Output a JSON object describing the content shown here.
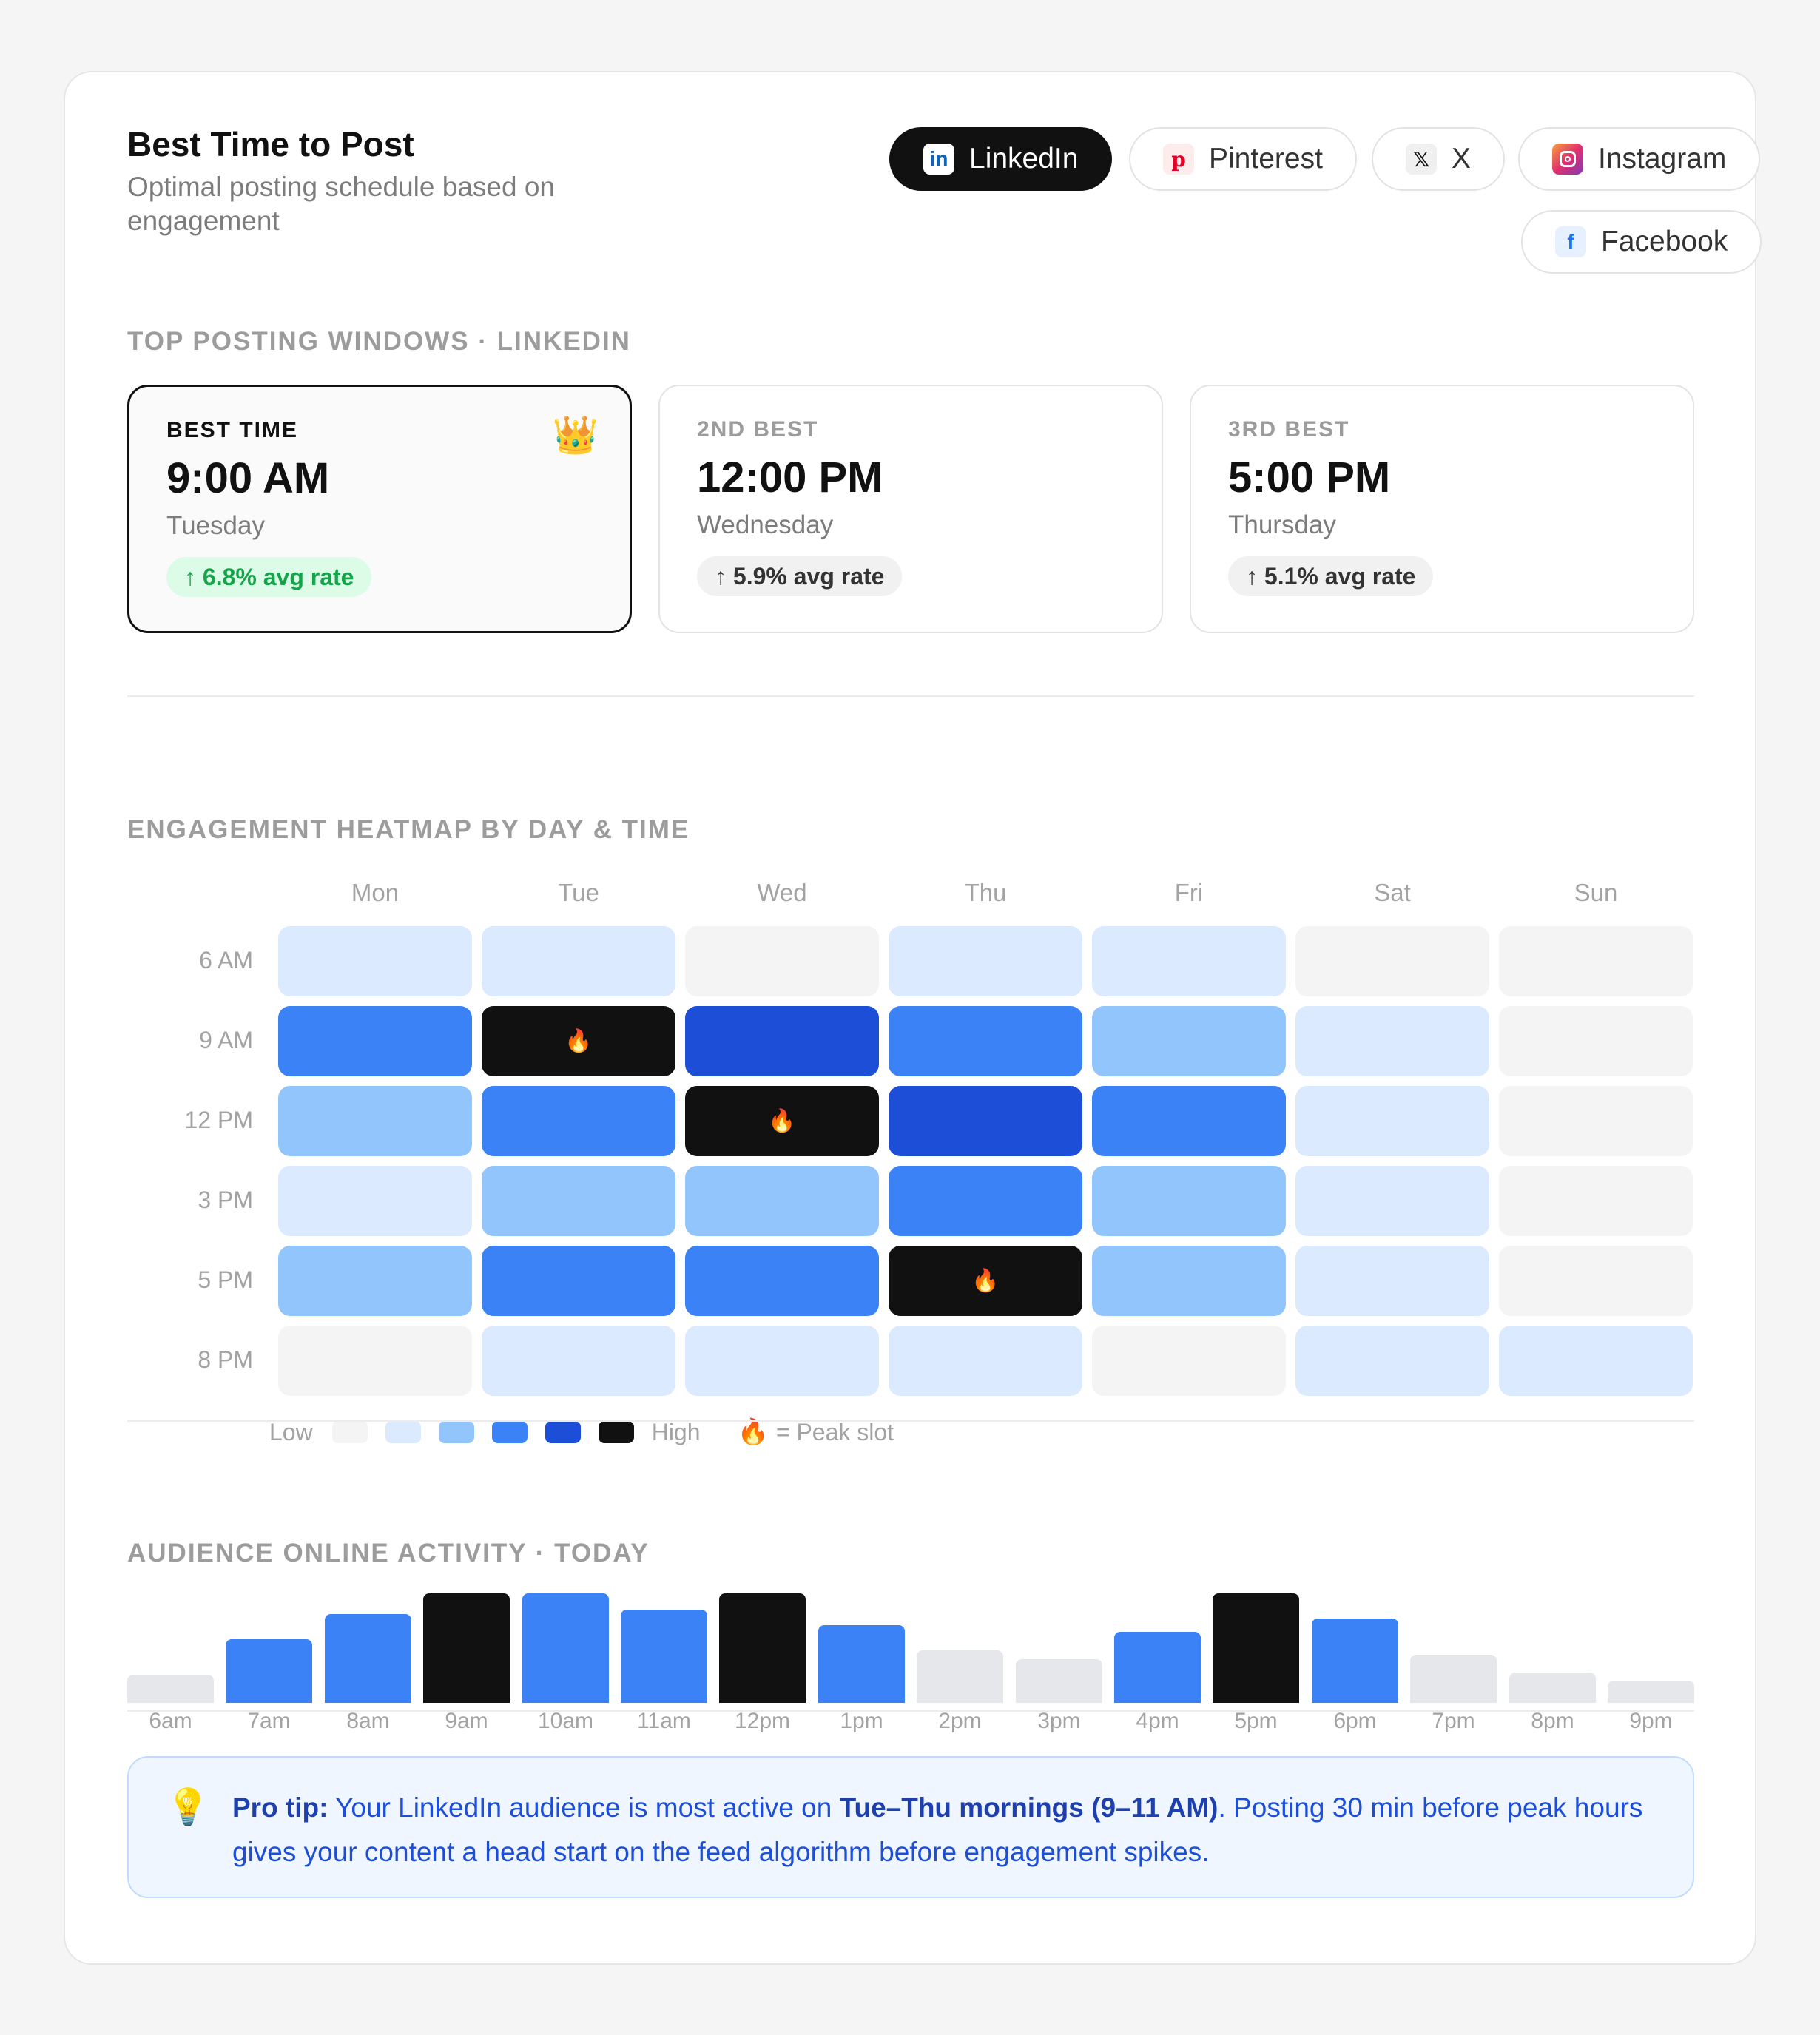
{
  "header": {
    "title": "Best Time to Post",
    "subtitle": "Optimal posting schedule based on engagement"
  },
  "platforms": [
    {
      "label": "LinkedIn",
      "icon": "linkedin-icon",
      "active": true
    },
    {
      "label": "Pinterest",
      "icon": "pinterest-icon",
      "active": false
    },
    {
      "label": "X",
      "icon": "x-icon",
      "active": false
    },
    {
      "label": "Instagram",
      "icon": "instagram-icon",
      "active": false
    },
    {
      "label": "Facebook",
      "icon": "facebook-icon",
      "active": false
    }
  ],
  "windows": {
    "label": "TOP POSTING WINDOWS · LINKEDIN",
    "items": [
      {
        "rank": "BEST TIME",
        "time": "9:00 AM",
        "day": "Tuesday",
        "rate": "↑ 6.8% avg rate",
        "icon": "crown-icon"
      },
      {
        "rank": "2ND BEST",
        "time": "12:00 PM",
        "day": "Wednesday",
        "rate": "↑ 5.9% avg rate"
      },
      {
        "rank": "3RD BEST",
        "time": "5:00 PM",
        "day": "Thursday",
        "rate": "↑ 5.1% avg rate"
      }
    ]
  },
  "heatmap": {
    "label": "ENGAGEMENT HEATMAP BY DAY & TIME",
    "days": [
      "Mon",
      "Tue",
      "Wed",
      "Thu",
      "Fri",
      "Sat",
      "Sun"
    ],
    "times": [
      "6 AM",
      "9 AM",
      "12 PM",
      "3 PM",
      "5 PM",
      "8 PM"
    ],
    "levels": [
      [
        1,
        1,
        0,
        1,
        1,
        0,
        0
      ],
      [
        3,
        5,
        4,
        3,
        2,
        1,
        0
      ],
      [
        2,
        3,
        5,
        4,
        3,
        1,
        0
      ],
      [
        1,
        2,
        2,
        3,
        2,
        1,
        0
      ],
      [
        2,
        3,
        3,
        5,
        2,
        1,
        0
      ],
      [
        0,
        1,
        1,
        1,
        0,
        1,
        1
      ]
    ],
    "peak_slots": [
      [
        1,
        1
      ],
      [
        2,
        2
      ],
      [
        4,
        3
      ]
    ],
    "peak_glyph": "🔥",
    "legend": {
      "low": "Low",
      "high": "High",
      "peak": "= Peak slot"
    },
    "colors": [
      "#f4f4f5",
      "#dbeafe",
      "#93c5fd",
      "#3b82f6",
      "#1d4ed8",
      "#111111"
    ]
  },
  "activity": {
    "label": "AUDIENCE ONLINE ACTIVITY · TODAY",
    "hours": [
      "6am",
      "7am",
      "8am",
      "9am",
      "10am",
      "11am",
      "12pm",
      "1pm",
      "2pm",
      "3pm",
      "4pm",
      "5pm",
      "6pm",
      "7pm",
      "8pm",
      "9pm"
    ],
    "values": [
      26,
      58,
      81,
      100,
      100,
      85,
      100,
      71,
      48,
      40,
      65,
      100,
      77,
      44,
      28,
      20
    ],
    "tiers": [
      "low",
      "mid",
      "mid",
      "peak",
      "mid",
      "mid",
      "peak",
      "mid",
      "low",
      "low",
      "mid",
      "peak",
      "mid",
      "low",
      "low",
      "low"
    ]
  },
  "tip": {
    "icon": "lightbulb-icon",
    "lead": "Pro tip:",
    "text_1": " Your LinkedIn audience is most active on ",
    "highlight": "Tue–Thu mornings (9–11 AM)",
    "text_2": ". Posting 30 min before peak hours gives your content a head start on the feed algorithm before engagement spikes."
  }
}
